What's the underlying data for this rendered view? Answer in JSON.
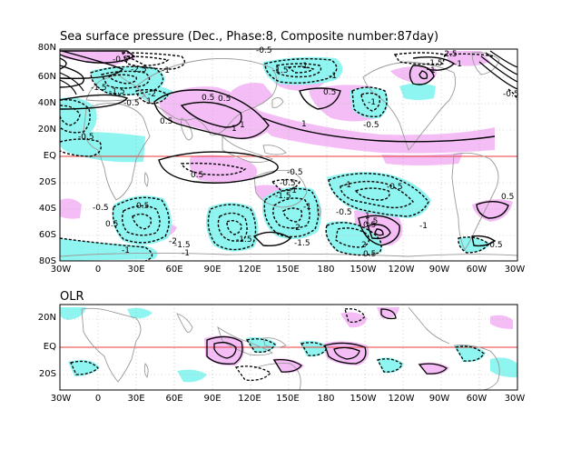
{
  "top_panel": {
    "title": "Sea surface pressure (Dec., Phase:8, Composite number:87day)",
    "y_labels": [
      "80N",
      "60N",
      "40N",
      "20N",
      "EQ",
      "20S",
      "40S",
      "60S",
      "80S"
    ],
    "x_labels": [
      "30W",
      "0",
      "30E",
      "60E",
      "90E",
      "120E",
      "150E",
      "180",
      "150W",
      "120W",
      "90W",
      "60W",
      "30W"
    ],
    "contour_labels": [
      "-0.5",
      "-2.5",
      "-1",
      "-1.5",
      "-2",
      "0.5",
      "1",
      "-0.5",
      "-1",
      "-1.5",
      "0.5",
      "1",
      "-0.5",
      "-1",
      "-0.5",
      "-1.5",
      "-1",
      "-2.5",
      "0.5",
      "1",
      "-0.5",
      "-1",
      "-1.5",
      "-1",
      "-0.5",
      "0.5",
      "1",
      "0.5",
      "-0.5",
      "-1",
      "-1.5",
      "-2",
      "-1.5",
      "-1",
      "-0.5",
      "0.5",
      "1",
      "1.5",
      "2",
      "0.5",
      "-0.5",
      "-1",
      "-1.5",
      "-1",
      "0.5",
      "-0.5",
      "-1.5",
      "-2",
      "-1",
      "-0.5",
      "-1",
      "0.5",
      "0.5",
      "-0.5"
    ]
  },
  "bottom_panel": {
    "title": "OLR",
    "y_labels": [
      "20N",
      "EQ",
      "20S"
    ],
    "x_labels": [
      "30W",
      "0",
      "30E",
      "60E",
      "90E",
      "120E",
      "150E",
      "180",
      "150W",
      "120W",
      "90W",
      "60W",
      "30W"
    ]
  },
  "colors": {
    "positive_shading": "#f5bdf5",
    "negative_shading": "#8ff5f0",
    "equator_line": "#e83a3a",
    "coastline": "#9a9a9a",
    "grid": "#b0b0b0",
    "contour": "#000000"
  }
}
